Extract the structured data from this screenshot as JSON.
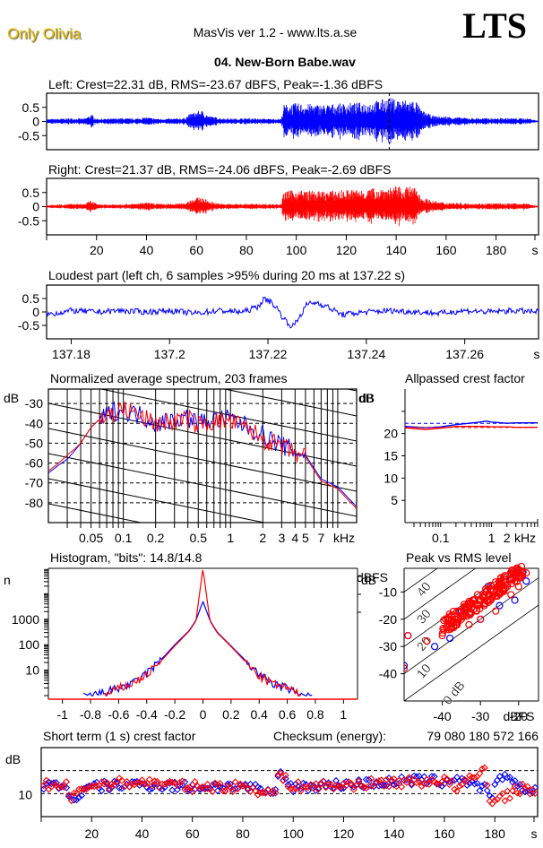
{
  "header": {
    "artist": "Only Olivia",
    "app_title": "MasVis ver 1.2 - www.lts.a.se",
    "logo": "LTS",
    "filename": "04. New-Born Babe.wav"
  },
  "colors": {
    "left": "#0000ff",
    "right": "#ff0000",
    "artist": "#e8c000"
  },
  "chart_data": [
    {
      "id": "left-waveform",
      "type": "area",
      "title": "Left: Crest=22.31 dB, RMS=-23.67 dBFS, Peak=-1.36 dBFS",
      "ylim": [
        -1,
        1
      ],
      "yticks": [
        "0.5",
        "0",
        "-0.5"
      ],
      "ytick_values": [
        0.5,
        0,
        -0.5
      ],
      "marker_time_s": 137.22,
      "envelope": {
        "x": [
          0,
          5,
          10,
          15,
          18,
          20,
          25,
          30,
          35,
          40,
          45,
          50,
          55,
          58,
          62,
          65,
          70,
          75,
          80,
          85,
          90,
          94,
          95,
          100,
          110,
          120,
          130,
          137,
          140,
          148,
          150,
          155,
          160,
          170,
          180,
          190,
          194,
          196,
          200
        ],
        "amp": [
          0.08,
          0.1,
          0.12,
          0.1,
          0.25,
          0.1,
          0.1,
          0.12,
          0.1,
          0.15,
          0.1,
          0.1,
          0.12,
          0.3,
          0.4,
          0.2,
          0.12,
          0.1,
          0.12,
          0.1,
          0.1,
          0.1,
          0.6,
          0.65,
          0.6,
          0.65,
          0.7,
          0.85,
          0.8,
          0.75,
          0.4,
          0.2,
          0.18,
          0.12,
          0.12,
          0.12,
          0.1,
          0.04,
          0.03
        ]
      }
    },
    {
      "id": "right-waveform",
      "type": "area",
      "title": "Right: Crest=21.37 dB, RMS=-24.06 dBFS, Peak=-2.69 dBFS",
      "ylim": [
        -1,
        1
      ],
      "yticks": [
        "0.5",
        "0",
        "-0.5"
      ],
      "ytick_values": [
        0.5,
        0,
        -0.5
      ],
      "xticks": [
        "20",
        "40",
        "60",
        "80",
        "100",
        "120",
        "140",
        "160",
        "180"
      ],
      "xtick_values": [
        20,
        40,
        60,
        80,
        100,
        120,
        140,
        160,
        180
      ],
      "xunit": "s",
      "xlim": [
        0,
        197
      ],
      "envelope": {
        "x": [
          0,
          5,
          10,
          15,
          18,
          20,
          25,
          30,
          35,
          40,
          45,
          50,
          55,
          58,
          62,
          65,
          70,
          75,
          80,
          85,
          90,
          94,
          95,
          100,
          110,
          120,
          130,
          137,
          140,
          148,
          150,
          155,
          160,
          170,
          180,
          190,
          194,
          196,
          200
        ],
        "amp": [
          0.06,
          0.08,
          0.1,
          0.1,
          0.22,
          0.1,
          0.08,
          0.1,
          0.1,
          0.15,
          0.1,
          0.1,
          0.12,
          0.28,
          0.35,
          0.2,
          0.1,
          0.1,
          0.1,
          0.1,
          0.1,
          0.1,
          0.55,
          0.6,
          0.55,
          0.6,
          0.65,
          0.7,
          0.72,
          0.7,
          0.35,
          0.2,
          0.15,
          0.12,
          0.12,
          0.12,
          0.1,
          0.04,
          0.03
        ]
      }
    },
    {
      "id": "loudest-part",
      "type": "line",
      "title": "Loudest part (left  ch, 6 samples >95% during 20 ms at 137.22 s)",
      "ylim": [
        -1,
        1
      ],
      "yticks": [
        "0.5",
        "0",
        "-0.5"
      ],
      "ytick_values": [
        0.5,
        0,
        -0.5
      ],
      "xticks": [
        "137.18",
        "137.2",
        "137.22",
        "137.24",
        "137.26"
      ],
      "xtick_values": [
        137.18,
        137.2,
        137.22,
        137.24,
        137.26
      ],
      "xlim": [
        137.175,
        137.275
      ],
      "xunit": "s",
      "x": [
        137.175,
        137.18,
        137.185,
        137.19,
        137.195,
        137.2,
        137.205,
        137.21,
        137.215,
        137.218,
        137.219,
        137.22,
        137.221,
        137.222,
        137.223,
        137.224,
        137.225,
        137.226,
        137.227,
        137.228,
        137.23,
        137.232,
        137.235,
        137.24,
        137.245,
        137.25,
        137.255,
        137.26,
        137.265,
        137.27,
        137.275
      ],
      "y": [
        -0.1,
        0.05,
        0.0,
        0.05,
        0.0,
        0.05,
        -0.05,
        0.05,
        0.0,
        0.2,
        0.45,
        0.45,
        0.3,
        0.1,
        -0.2,
        -0.4,
        -0.55,
        -0.3,
        0.0,
        0.3,
        0.35,
        0.2,
        -0.1,
        0.0,
        0.05,
        0.0,
        -0.05,
        0.05,
        0.0,
        0.05,
        0.0
      ]
    },
    {
      "id": "spectrum",
      "type": "line",
      "title": "Normalized average spectrum, 203 frames",
      "ylabel": "dB",
      "ylim": [
        -90,
        -20
      ],
      "yticks": [
        "-30",
        "-40",
        "-50",
        "-60",
        "-70",
        "-80"
      ],
      "ytick_values": [
        -30,
        -40,
        -50,
        -60,
        -70,
        -80
      ],
      "xscale": "log",
      "xlim_khz": [
        0.02,
        15
      ],
      "xticks": [
        "0.05",
        "0.1",
        "0.2",
        "0.5",
        "1",
        "2",
        "3",
        "4",
        "5",
        "7"
      ],
      "xtick_values": [
        0.05,
        0.1,
        0.2,
        0.5,
        1,
        2,
        3,
        4,
        5,
        7
      ],
      "xunit": "kHz",
      "series": [
        {
          "name": "Left",
          "x": [
            0.02,
            0.025,
            0.03,
            0.035,
            0.04,
            0.05,
            0.06,
            0.07,
            0.08,
            0.1,
            0.12,
            0.15,
            0.2,
            0.3,
            0.4,
            0.5,
            0.7,
            1,
            1.5,
            2,
            3,
            4,
            5,
            7,
            10,
            15
          ],
          "y": [
            -65,
            -61,
            -58,
            -54,
            -50,
            -42,
            -38,
            -36,
            -34,
            -33,
            -35,
            -36,
            -40,
            -38,
            -37,
            -40,
            -38,
            -38,
            -42,
            -46,
            -51,
            -54,
            -56,
            -68,
            -72,
            -82
          ]
        },
        {
          "name": "Right",
          "x": [
            0.02,
            0.025,
            0.03,
            0.035,
            0.04,
            0.05,
            0.06,
            0.07,
            0.08,
            0.1,
            0.12,
            0.15,
            0.2,
            0.3,
            0.4,
            0.5,
            0.7,
            1,
            1.5,
            2,
            3,
            4,
            5,
            7,
            10,
            15
          ],
          "y": [
            -64,
            -60,
            -56,
            -53,
            -50,
            -42,
            -38,
            -36,
            -35,
            -33,
            -34,
            -37,
            -40,
            -39,
            -38,
            -41,
            -39,
            -39,
            -43,
            -48,
            -52,
            -55,
            -57,
            -69,
            -73,
            -83
          ]
        }
      ]
    },
    {
      "id": "allpassed-crest",
      "type": "line",
      "title": "Allpassed crest factor",
      "ylabel": "dB",
      "ylim": [
        0,
        30
      ],
      "yticks": [
        "20",
        "15",
        "10",
        "5"
      ],
      "ytick_values": [
        20,
        15,
        10,
        5
      ],
      "xscale": "log",
      "xlim_khz": [
        0.02,
        8
      ],
      "xticks": [
        "0.1",
        "1",
        "2"
      ],
      "xtick_values": [
        0.1,
        1,
        2
      ],
      "xunit": "kHz",
      "series": [
        {
          "name": "Left",
          "x": [
            0.02,
            0.05,
            0.1,
            0.2,
            0.5,
            0.8,
            1,
            2,
            3,
            8
          ],
          "y": [
            21.6,
            21.3,
            21.5,
            22.0,
            22.5,
            22.8,
            22.6,
            22.3,
            22.4,
            22.4
          ],
          "overall": 22.31
        },
        {
          "name": "Right",
          "x": [
            0.02,
            0.05,
            0.1,
            0.2,
            0.5,
            0.8,
            1,
            2,
            3,
            8
          ],
          "y": [
            21.3,
            20.9,
            21.2,
            21.6,
            21.6,
            21.6,
            21.5,
            21.5,
            21.4,
            21.4
          ],
          "overall": 21.37
        }
      ]
    },
    {
      "id": "histogram",
      "type": "line",
      "title": "Histogram, \"bits\": 14.8/14.8",
      "ylabel": "n",
      "yscale": "log",
      "ylim": [
        1,
        100000
      ],
      "yticks": [
        "1000",
        "100",
        "10"
      ],
      "ytick_values": [
        1000,
        100,
        10
      ],
      "xlim": [
        -1.1,
        1.1
      ],
      "xticks": [
        "-1",
        "-0.8",
        "-0.6",
        "-0.4",
        "-0.2",
        "0",
        "0.2",
        "0.4",
        "0.6",
        "0.8",
        "1"
      ],
      "xtick_values": [
        -1,
        -0.8,
        -0.6,
        -0.4,
        -0.2,
        0,
        0.2,
        0.4,
        0.6,
        0.8,
        1
      ],
      "right_label": "dB",
      "series": [
        {
          "name": "Left",
          "x": [
            -0.85,
            -0.8,
            -0.6,
            -0.5,
            -0.4,
            -0.3,
            -0.2,
            -0.1,
            -0.05,
            0,
            0.05,
            0.1,
            0.2,
            0.3,
            0.4,
            0.5,
            0.6,
            0.7,
            0.78
          ],
          "y": [
            1,
            1,
            2,
            3,
            8,
            25,
            100,
            350,
            900,
            5000,
            900,
            320,
            90,
            25,
            7,
            3,
            2,
            1,
            1
          ]
        },
        {
          "name": "Right",
          "x": [
            -0.7,
            -0.6,
            -0.5,
            -0.4,
            -0.3,
            -0.2,
            -0.1,
            -0.05,
            0,
            0.05,
            0.1,
            0.2,
            0.3,
            0.4,
            0.5,
            0.6,
            0.7
          ],
          "y": [
            1,
            2,
            3,
            7,
            22,
            90,
            330,
            850,
            100000,
            850,
            300,
            85,
            22,
            6,
            3,
            2,
            1
          ]
        }
      ]
    },
    {
      "id": "peak-vs-rms",
      "type": "scatter",
      "title": "Peak vs RMS level",
      "xlabel": "dBFS",
      "ylabel": "dBFS",
      "xlim": [
        -50,
        -15
      ],
      "ylim": [
        -50,
        0
      ],
      "xticks": [
        "-40",
        "-30",
        "-20"
      ],
      "xtick_values": [
        -40,
        -30,
        -20
      ],
      "yticks": [
        "-10",
        "-20",
        "-30",
        "-40"
      ],
      "ytick_values": [
        -10,
        -20,
        -30,
        -40
      ],
      "crest_lines_db": [
        0,
        10,
        20,
        30,
        40
      ],
      "crest_line_labels": [
        "0 dB",
        "10",
        "20",
        "30",
        "40"
      ],
      "series": [
        {
          "name": "Left",
          "points": [
            [
              -50,
              -37
            ],
            [
              -49,
              -26
            ],
            [
              -42,
              -30
            ],
            [
              -38,
              -27
            ],
            [
              -36,
              -21
            ],
            [
              -35,
              -17
            ],
            [
              -32,
              -13
            ],
            [
              -28,
              -8
            ],
            [
              -22,
              -5
            ],
            [
              -20,
              -1
            ],
            [
              -19,
              -3
            ],
            [
              -18,
              -6
            ],
            [
              -21,
              -13
            ],
            [
              -25,
              -15
            ],
            [
              -30,
              -20
            ]
          ]
        },
        {
          "name": "Right",
          "points": [
            [
              -50,
              -38
            ],
            [
              -49,
              -26
            ],
            [
              -44,
              -28
            ],
            [
              -40,
              -26
            ],
            [
              -37,
              -23
            ],
            [
              -35,
              -20
            ],
            [
              -33,
              -18
            ],
            [
              -31,
              -17
            ],
            [
              -29,
              -15
            ],
            [
              -27,
              -12
            ],
            [
              -25,
              -10
            ],
            [
              -23,
              -8
            ],
            [
              -21,
              -6
            ],
            [
              -19,
              -4
            ],
            [
              -18,
              -3
            ],
            [
              -33,
              -22
            ],
            [
              -30,
              -20
            ],
            [
              -26,
              -17
            ],
            [
              -22,
              -11
            ],
            [
              -20,
              -8
            ]
          ]
        }
      ]
    },
    {
      "id": "short-term-crest",
      "type": "scatter",
      "title": "Short term (1 s) crest factor",
      "checksum_label": "Checksum (energy):",
      "checksum_value": "79 080 180 572 166",
      "ylabel": "dB",
      "ylim": [
        5,
        20
      ],
      "yticks": [
        "10"
      ],
      "ytick_values": [
        10
      ],
      "dashed_lines_db": [
        10,
        15
      ],
      "xlim": [
        0,
        197
      ],
      "xticks": [
        "20",
        "40",
        "60",
        "80",
        "100",
        "120",
        "140",
        "160",
        "180"
      ],
      "xtick_values": [
        20,
        40,
        60,
        80,
        100,
        120,
        140,
        160,
        180
      ],
      "xunit": "s",
      "series": [
        {
          "name": "Left",
          "profile_x": [
            0,
            10,
            12,
            15,
            20,
            40,
            60,
            80,
            93,
            94,
            100,
            120,
            140,
            150,
            160,
            165,
            176,
            178,
            183,
            190,
            196
          ],
          "profile_y": [
            12,
            11.5,
            9,
            9.5,
            11.5,
            12,
            11.5,
            11.5,
            10,
            14.5,
            11.5,
            12,
            12.5,
            13,
            12.5,
            13.5,
            11,
            9,
            14,
            11,
            11
          ]
        },
        {
          "name": "Right",
          "profile_x": [
            0,
            10,
            12,
            15,
            20,
            40,
            60,
            80,
            93,
            94,
            100,
            120,
            140,
            150,
            160,
            165,
            176,
            178,
            180,
            190,
            196
          ],
          "profile_y": [
            12,
            11.5,
            9.2,
            10,
            12,
            12.5,
            11.5,
            11.5,
            10,
            14.3,
            11.5,
            11.8,
            12.5,
            12.5,
            13,
            11,
            15.2,
            9,
            8.5,
            11,
            11
          ]
        }
      ]
    }
  ]
}
